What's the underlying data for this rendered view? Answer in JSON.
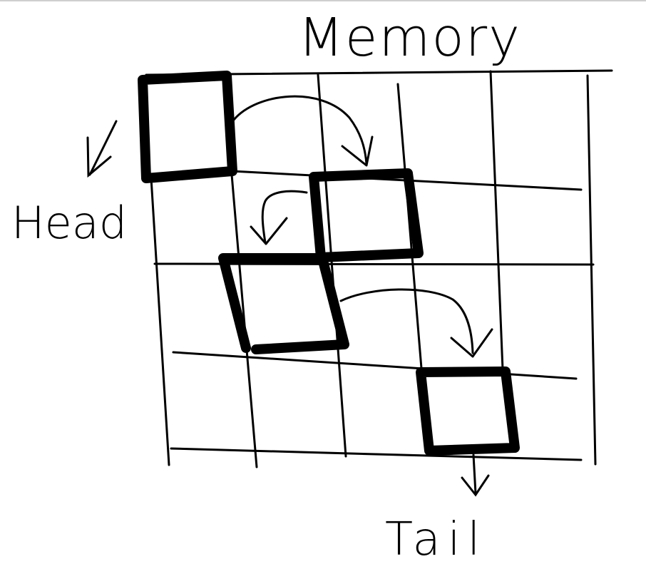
{
  "diagram": {
    "title": "Memory",
    "head_label": "Head",
    "tail_label": "Tail",
    "grid": {
      "rows": 4,
      "cols": 5
    },
    "nodes": [
      {
        "id": "node-1",
        "row": 0,
        "col": 0
      },
      {
        "id": "node-2",
        "row": 1,
        "col": 2
      },
      {
        "id": "node-3",
        "row": 2,
        "col": 1
      },
      {
        "id": "node-4",
        "row": 3,
        "col": 3
      }
    ],
    "links": [
      {
        "from": "node-1",
        "to": "node-2"
      },
      {
        "from": "node-2",
        "to": "node-3"
      },
      {
        "from": "node-3",
        "to": "node-4"
      }
    ],
    "colors": {
      "ink": "#000000",
      "background": "#ffffff"
    }
  }
}
